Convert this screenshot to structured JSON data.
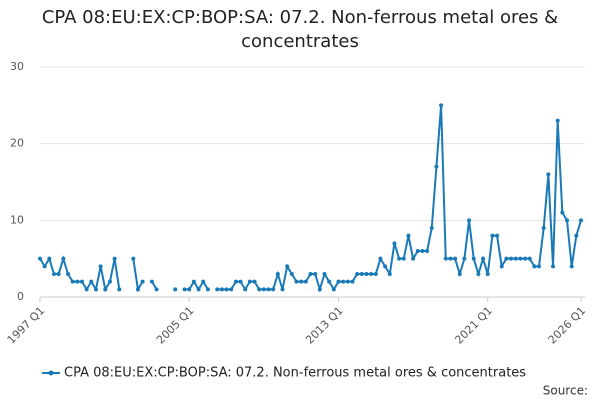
{
  "chart_data": {
    "type": "line",
    "title": "CPA 08:EU:EX:CP:BOP:SA: 07.2. Non-ferrous metal ores & concentrates",
    "categories": [
      "1997 Q1",
      null,
      null,
      null,
      null,
      null,
      null,
      null,
      null,
      null,
      null,
      null,
      null,
      null,
      null,
      null,
      null,
      null,
      null,
      null,
      null,
      null,
      null,
      null,
      null,
      null,
      null,
      null,
      null,
      null,
      null,
      null,
      "2005 Q1",
      null,
      null,
      null,
      null,
      null,
      null,
      null,
      null,
      null,
      null,
      null,
      null,
      null,
      null,
      null,
      null,
      null,
      null,
      null,
      null,
      null,
      null,
      null,
      null,
      null,
      null,
      null,
      null,
      null,
      null,
      null,
      "2013 Q1",
      null,
      null,
      null,
      null,
      null,
      null,
      null,
      null,
      null,
      null,
      null,
      null,
      null,
      null,
      null,
      null,
      null,
      null,
      null,
      null,
      null,
      null,
      null,
      null,
      null,
      null,
      null,
      null,
      null,
      null,
      null,
      "2021 Q1",
      null,
      null,
      null,
      null,
      null,
      null,
      null,
      null,
      null,
      null,
      null,
      null,
      null,
      null,
      null,
      null,
      null,
      null,
      null,
      "2026 Q1"
    ],
    "series": [
      {
        "name": "CPA 08:EU:EX:CP:BOP:SA: 07.2. Non-ferrous metal ores & concentrates",
        "color": "#1a7ab8",
        "values": [
          5,
          4,
          5,
          3,
          3,
          5,
          3,
          2,
          2,
          2,
          1,
          2,
          1,
          4,
          1,
          2,
          5,
          1,
          null,
          null,
          5,
          1,
          2,
          null,
          2,
          1,
          null,
          null,
          null,
          1,
          null,
          1,
          1,
          2,
          1,
          2,
          1,
          null,
          1,
          1,
          1,
          1,
          2,
          2,
          1,
          2,
          2,
          1,
          1,
          1,
          1,
          3,
          1,
          4,
          3,
          2,
          2,
          2,
          3,
          3,
          1,
          3,
          2,
          1,
          2,
          2,
          2,
          2,
          3,
          3,
          3,
          3,
          3,
          5,
          4,
          3,
          7,
          5,
          5,
          8,
          5,
          6,
          6,
          6,
          9,
          17,
          25,
          5,
          5,
          5,
          3,
          5,
          10,
          5,
          3,
          5,
          3,
          8,
          8,
          4,
          5,
          5,
          5,
          5,
          5,
          5,
          4,
          4,
          9,
          16,
          4,
          23,
          11,
          10,
          4,
          8,
          10
        ]
      }
    ],
    "ylim": [
      0,
      30
    ],
    "yticks": [
      0,
      10,
      20,
      30
    ],
    "grid": true,
    "source": "Source:"
  }
}
